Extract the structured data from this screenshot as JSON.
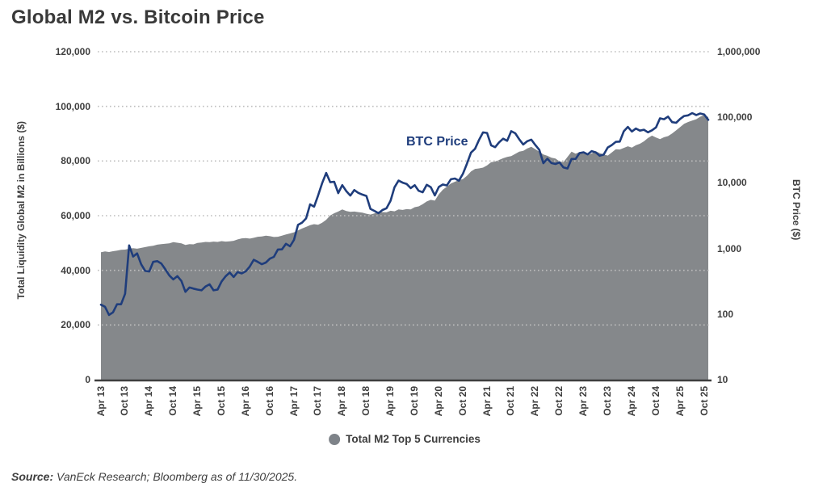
{
  "title": "Global M2 vs. Bitcoin Price",
  "annotation": {
    "text": "BTC Price"
  },
  "legend": {
    "items": [
      {
        "label": "Total M2 Top 5 Currencies",
        "marker": "circle",
        "color": "#7e8389"
      }
    ]
  },
  "source": {
    "label": "Source:",
    "text": " VanEck Research; Bloomberg as of 11/30/2025."
  },
  "colors": {
    "m2_area": "#85888b",
    "btc_line": "#1f3d7c",
    "gridline": "#bebebe",
    "axis_line": "#3f3f3f",
    "text": "#3e3e3e"
  },
  "chart_data": {
    "type": "combo",
    "title": "Global M2 vs. Bitcoin Price",
    "x_start": "Apr 2013",
    "x_end": "Nov 2025",
    "x_interval": "monthly",
    "grid": "horizontal-dotted",
    "x_tick_labels": [
      "Apr 13",
      "Oct 13",
      "Apr 14",
      "Oct 14",
      "Apr 15",
      "Oct 15",
      "Apr 16",
      "Oct 16",
      "Apr 17",
      "Oct 17",
      "Apr 18",
      "Oct 18",
      "Apr 19",
      "Oct 19",
      "Apr 20",
      "Oct 20",
      "Apr 21",
      "Oct 21",
      "Apr 22",
      "Oct 22",
      "Apr 23",
      "Oct 23",
      "Apr 24",
      "Oct 24",
      "Apr 25",
      "Oct 25"
    ],
    "x_tick_month_step": 6,
    "left_axis": {
      "label": "Total Liquidity Global M2 in Billions ($)",
      "scale": "linear",
      "min": 0,
      "max": 120000,
      "ticks": [
        "0",
        "20,000",
        "40,000",
        "60,000",
        "80,000",
        "100,000",
        "120,000"
      ]
    },
    "right_axis": {
      "label": "BTC Price ($)",
      "scale": "log",
      "min": 10,
      "max": 1000000,
      "ticks": [
        "10",
        "100",
        "1,000",
        "10,000",
        "100,000",
        "1,000,000"
      ]
    },
    "series": [
      {
        "name": "Total M2 Top 5 Currencies",
        "type": "area",
        "axis": "left",
        "color": "#85888b",
        "values": [
          46600,
          46900,
          46700,
          47000,
          47200,
          47500,
          47600,
          47900,
          48100,
          47900,
          48200,
          48500,
          48800,
          49000,
          49400,
          49600,
          49700,
          49900,
          50300,
          50100,
          49900,
          49300,
          49600,
          49500,
          50000,
          50200,
          50400,
          50300,
          50500,
          50400,
          50700,
          50500,
          50600,
          50800,
          51300,
          51700,
          51800,
          51600,
          51900,
          52300,
          52400,
          52700,
          52500,
          52200,
          52300,
          52700,
          53100,
          53500,
          53900,
          54600,
          55300,
          55900,
          56500,
          56900,
          56700,
          57400,
          58500,
          60100,
          60900,
          61500,
          62300,
          61700,
          61400,
          61500,
          61300,
          61100,
          60700,
          60400,
          60800,
          61500,
          61300,
          61200,
          61800,
          61600,
          62300,
          62100,
          62400,
          62300,
          63100,
          63400,
          64200,
          65200,
          65800,
          65500,
          67800,
          69500,
          70600,
          71800,
          72400,
          73000,
          73400,
          74600,
          76200,
          77100,
          77300,
          77600,
          78400,
          79600,
          79800,
          80400,
          81000,
          81500,
          81800,
          82600,
          83400,
          83700,
          84600,
          85200,
          84300,
          83400,
          82400,
          81900,
          81200,
          80900,
          79900,
          79600,
          81500,
          83400,
          82700,
          83300,
          83100,
          82200,
          82800,
          83600,
          82900,
          82400,
          82000,
          83100,
          84300,
          84200,
          84800,
          85400,
          84900,
          85800,
          86300,
          87200,
          88400,
          89300,
          88600,
          88000,
          88700,
          89100,
          90100,
          91200,
          92400,
          93600,
          94300,
          94800,
          95300,
          96200,
          96800,
          96100
        ]
      },
      {
        "name": "BTC Price",
        "type": "line",
        "axis": "right",
        "color": "#1f3d7c",
        "values": [
          139,
          129,
          97,
          106,
          141,
          141,
          204,
          1113,
          754,
          842,
          573,
          454,
          446,
          627,
          640,
          589,
          481,
          387,
          338,
          378,
          320,
          218,
          254,
          244,
          236,
          230,
          263,
          284,
          230,
          236,
          314,
          377,
          430,
          368,
          437,
          416,
          448,
          531,
          673,
          624,
          575,
          610,
          700,
          745,
          963,
          970,
          1180,
          1080,
          1350,
          2286,
          2480,
          2875,
          4703,
          4338,
          6440,
          9916,
          14156,
          10221,
          10397,
          6973,
          9240,
          7494,
          6404,
          7780,
          7037,
          6625,
          6317,
          4017,
          3743,
          3457,
          3854,
          4105,
          5350,
          8574,
          10817,
          10085,
          9630,
          8308,
          9199,
          7569,
          7193,
          9350,
          8599,
          6438,
          8658,
          9461,
          9137,
          11351,
          11655,
          10784,
          13780,
          19625,
          28994,
          33114,
          45137,
          58763,
          57750,
          37332,
          35040,
          41553,
          47130,
          43790,
          61318,
          57005,
          46306,
          38483,
          43193,
          45538,
          37714,
          31792,
          19985,
          23336,
          20049,
          19431,
          20495,
          17168,
          16547,
          23139,
          23147,
          28478,
          29268,
          27219,
          30477,
          29230,
          25931,
          26967,
          34667,
          37718,
          42265,
          42580,
          61198,
          71333,
          60636,
          67491,
          62678,
          64619,
          58969,
          63329,
          70215,
          96449,
          93429,
          102400,
          84373,
          82549,
          94207,
          104600,
          107100,
          115800,
          108200,
          114100,
          110100,
          91300
        ]
      }
    ]
  }
}
